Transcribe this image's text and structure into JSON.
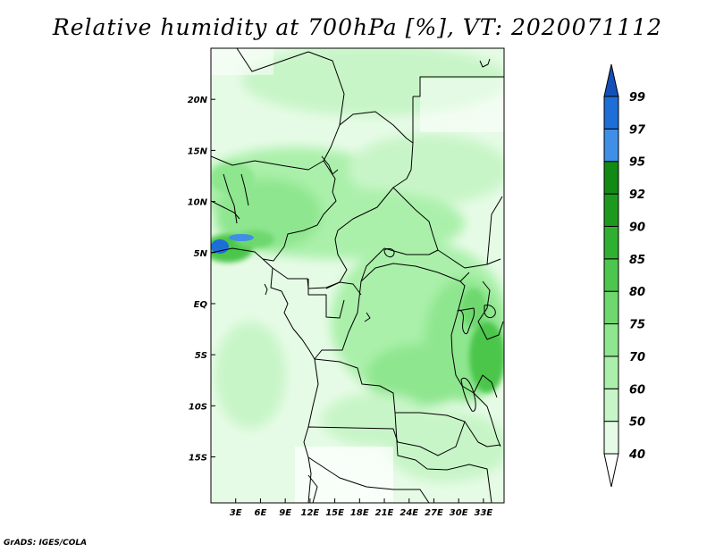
{
  "title": "Relative humidity at 700hPa [%], VT: 2020071112",
  "credit": "GrADS: IGES/COLA",
  "map": {
    "lon_range": [
      0,
      35.5
    ],
    "lat_range": [
      -19.5,
      25
    ],
    "lon_ticks": [
      {
        "value": 3,
        "label": "3E"
      },
      {
        "value": 6,
        "label": "6E"
      },
      {
        "value": 9,
        "label": "9E"
      },
      {
        "value": 12,
        "label": "12E"
      },
      {
        "value": 15,
        "label": "15E"
      },
      {
        "value": 18,
        "label": "18E"
      },
      {
        "value": 21,
        "label": "21E"
      },
      {
        "value": 24,
        "label": "24E"
      },
      {
        "value": 27,
        "label": "27E"
      },
      {
        "value": 30,
        "label": "30E"
      },
      {
        "value": 33,
        "label": "33E"
      }
    ],
    "lat_ticks": [
      {
        "value": 20,
        "label": "20N"
      },
      {
        "value": 15,
        "label": "15N"
      },
      {
        "value": 10,
        "label": "10N"
      },
      {
        "value": 5,
        "label": "5N"
      },
      {
        "value": 0,
        "label": "EQ"
      },
      {
        "value": -5,
        "label": "5S"
      },
      {
        "value": -10,
        "label": "10S"
      },
      {
        "value": -15,
        "label": "15S"
      }
    ]
  },
  "colorbar": {
    "labels": [
      "40",
      "50",
      "60",
      "70",
      "75",
      "80",
      "85",
      "90",
      "92",
      "95",
      "97",
      "99"
    ],
    "colors": [
      "#ffffff",
      "#e6fbe6",
      "#c8f5c8",
      "#aaf0aa",
      "#8ee68e",
      "#6ed86e",
      "#4cc64c",
      "#30b030",
      "#1d9a1d",
      "#138a13",
      "#3f8fe6",
      "#1e6ed8",
      "#1350b8"
    ]
  }
}
